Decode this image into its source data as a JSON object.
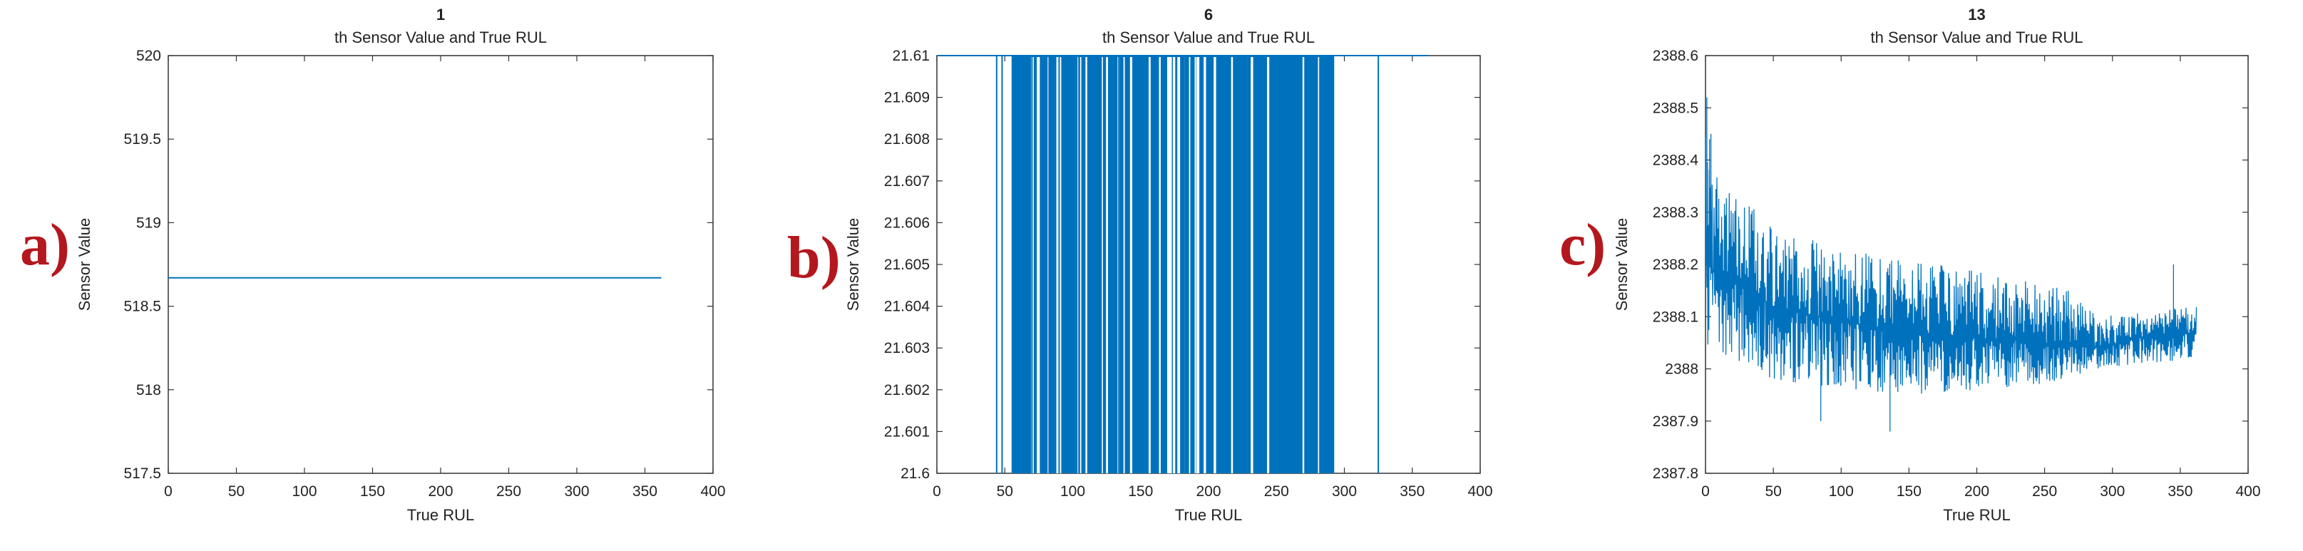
{
  "panels": [
    {
      "letter": "a)",
      "chart_data": {
        "type": "line",
        "title_number": "1",
        "title": "th Sensor Value and True RUL",
        "xlabel": "True RUL",
        "ylabel": "Sensor Value",
        "xlim": [
          0,
          400
        ],
        "ylim": [
          517.5,
          520
        ],
        "xticks": [
          "0",
          "50",
          "100",
          "150",
          "200",
          "250",
          "300",
          "350",
          "400"
        ],
        "yticks": [
          "517.5",
          "518",
          "518.5",
          "519",
          "519.5",
          "520"
        ],
        "series": [
          {
            "x": [
              0,
              362
            ],
            "y": [
              518.67,
              518.67
            ],
            "color": "#0072bd",
            "style": "constant"
          }
        ]
      }
    },
    {
      "letter": "b)",
      "chart_data": {
        "type": "line",
        "title_number": "6",
        "title": "th Sensor Value and True RUL",
        "xlabel": "True RUL",
        "ylabel": "Sensor Value",
        "xlim": [
          0,
          400
        ],
        "ylim": [
          21.6,
          21.61
        ],
        "xticks": [
          "0",
          "50",
          "100",
          "150",
          "200",
          "250",
          "300",
          "350",
          "400"
        ],
        "yticks": [
          "21.6",
          "21.601",
          "21.602",
          "21.603",
          "21.604",
          "21.605",
          "21.606",
          "21.607",
          "21.608",
          "21.609",
          "21.61"
        ],
        "series": [
          {
            "color": "#0072bd",
            "style": "binary-spikes",
            "baseline": 21.61,
            "low": 21.6,
            "x_range": [
              0,
              362
            ],
            "dense_range": [
              55,
              292
            ],
            "drop_x": [
              44,
              48,
              57,
              61,
              66,
              70,
              73,
              77,
              81,
              86,
              90,
              93,
              98,
              103,
              108,
              113,
              118,
              124,
              129,
              134,
              139,
              146,
              152,
              158,
              163,
              169,
              176,
              183,
              189,
              195,
              201,
              207,
              214,
              221,
              228,
              234,
              241,
              246,
              252,
              257,
              262,
              266,
              271,
              276,
              280,
              285,
              289,
              292,
              325
            ]
          }
        ]
      }
    },
    {
      "letter": "c)",
      "chart_data": {
        "type": "line",
        "title_number": "13",
        "title": "th Sensor Value and True RUL",
        "xlabel": "True RUL",
        "ylabel": "Sensor Value",
        "xlim": [
          0,
          400
        ],
        "ylim": [
          2387.8,
          2388.6
        ],
        "xticks": [
          "0",
          "50",
          "100",
          "150",
          "200",
          "250",
          "300",
          "350",
          "400"
        ],
        "yticks": [
          "2387.8",
          "2387.9",
          "2388",
          "2388.1",
          "2388.2",
          "2388.3",
          "2388.4",
          "2388.5",
          "2388.6"
        ],
        "series": [
          {
            "color": "#0072bd",
            "style": "noisy-decay",
            "x_range": [
              0,
              362
            ],
            "mean_at": {
              "x": [
                0,
                50,
                100,
                150,
                200,
                250,
                290,
                320,
                362
              ],
              "y": [
                2388.2,
                2388.12,
                2388.09,
                2388.07,
                2388.06,
                2388.05,
                2388.04,
                2388.06,
                2388.07
              ]
            },
            "upper_band": {
              "x": [
                0,
                10,
                50,
                100,
                150,
                200,
                270,
                290,
                362
              ],
              "y": [
                2388.5,
                2388.36,
                2388.28,
                2388.23,
                2388.21,
                2388.19,
                2388.15,
                2388.1,
                2388.12
              ]
            },
            "lower_band": {
              "x": [
                0,
                10,
                50,
                100,
                150,
                200,
                250,
                290,
                362
              ],
              "y": [
                2388.05,
                2388.02,
                2387.98,
                2387.96,
                2387.95,
                2387.96,
                2387.97,
                2388.0,
                2388.02
              ]
            }
          }
        ]
      }
    }
  ]
}
